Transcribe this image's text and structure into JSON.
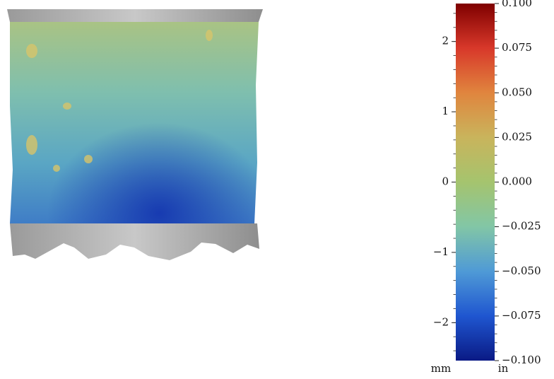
{
  "colorbar": {
    "type": "colorbar",
    "colormap": [
      "#7f0000",
      "#d8382a",
      "#e0853e",
      "#c9b45c",
      "#a5c46e",
      "#82c6a6",
      "#4f9ad6",
      "#1f56d0",
      "#0a1a85"
    ],
    "left_axis": {
      "label": "mm",
      "lim": [
        -2.54,
        2.54
      ],
      "ticks": [
        {
          "value": -2,
          "label": "−2"
        },
        {
          "value": -1,
          "label": "−1"
        },
        0,
        1,
        2
      ],
      "minor_step": 0.2
    },
    "right_axis": {
      "label": "in",
      "lim": [
        -0.1,
        0.1
      ],
      "ticks": [
        {
          "value": -0.1,
          "label": "−0.100"
        },
        {
          "value": -0.075,
          "label": "−0.075"
        },
        {
          "value": -0.05,
          "label": "−0.050"
        },
        {
          "value": -0.025,
          "label": "−0.025"
        },
        {
          "value": 0,
          "label": "0.000"
        },
        {
          "value": 0.025,
          "label": "0.025"
        },
        {
          "value": 0.05,
          "label": "0.050"
        },
        {
          "value": 0.075,
          "label": "0.075"
        },
        {
          "value": 0.1,
          "label": "0.100"
        }
      ],
      "minor_step": 0.005
    }
  }
}
